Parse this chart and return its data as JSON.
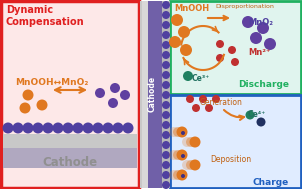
{
  "left_panel": {
    "bg_color": "#fde8e8",
    "border_color": "#e02020",
    "title": "Dynamic\nCompensation",
    "title_color": "#e02020",
    "equation": "MnOOH↔MnO₂",
    "equation_color": "#e07820",
    "cathode_label": "Cathode",
    "cathode_label_color": "#909090"
  },
  "top_right_panel": {
    "bg_color": "#e0f4ee",
    "border_color": "#20b060",
    "label": "Discharge",
    "label_color": "#20b060",
    "mnOOH_label": "MnOOH",
    "mnOOH_color": "#e07820",
    "disprop_label": "Disproportionation",
    "disprop_color": "#c06010",
    "mno2_label": "MnO₂",
    "mno2_color": "#5040a0",
    "mn2_label": "Mn²⁺",
    "mn2_color": "#c03030",
    "ce3_label": "Ce³⁺",
    "ce3_color": "#207060"
  },
  "bottom_right_panel": {
    "bg_color": "#e0ecff",
    "border_color": "#2060c0",
    "label": "Charge",
    "label_color": "#2060c0",
    "gen_label": "Generation",
    "gen_color": "#c06010",
    "ce4_label": "Ce⁴⁺",
    "ce4_color": "#207060",
    "dep_label": "Deposition",
    "dep_color": "#c06010"
  },
  "colors": {
    "orange": "#e07820",
    "orange_light": "#f0a050",
    "purple": "#6040a0",
    "purple_dark": "#403080",
    "red": "#c03030",
    "teal": "#208060",
    "dark_blue": "#203060",
    "gray1": "#c0c0c0",
    "gray2": "#a0a0a0",
    "strip_purple": "#7060a8",
    "dot_purple": "#5040a0"
  }
}
